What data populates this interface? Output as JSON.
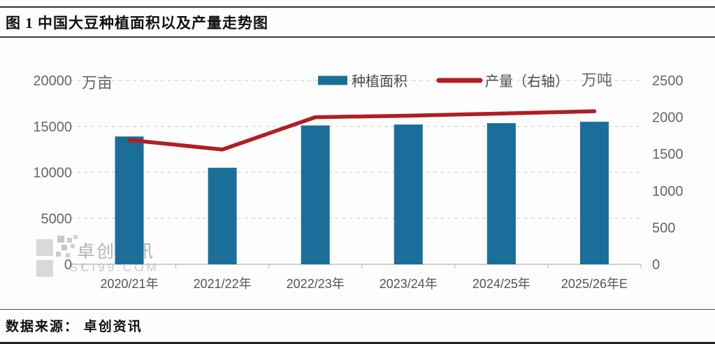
{
  "header": {
    "title": "图 1  中国大豆种植面积以及产量走势图"
  },
  "footer": {
    "source": "数据来源： 卓创资讯"
  },
  "watermark": {
    "name": "卓创资讯",
    "site": "SCI99.COM"
  },
  "chart_data": {
    "type": "combo-bar-line",
    "title": "图 1 中国大豆种植面积以及产量走势图",
    "categories": [
      "2020/21年",
      "2021/22年",
      "2022/23年",
      "2023/24年",
      "2024/25年",
      "2025/26年E"
    ],
    "series": [
      {
        "name": "种植面积",
        "type": "bar",
        "axis": "left",
        "color": "#1a6e99",
        "values": [
          13900,
          10500,
          15100,
          15200,
          15350,
          15500
        ]
      },
      {
        "name": "产量（右轴）",
        "type": "line",
        "axis": "right",
        "color": "#b01e23",
        "values": [
          1690,
          1560,
          2000,
          2020,
          2050,
          2080
        ]
      }
    ],
    "left_axis": {
      "unit": "万亩",
      "ticks": [
        0,
        5000,
        10000,
        15000,
        20000
      ],
      "max": 20000
    },
    "right_axis": {
      "unit": "万吨",
      "ticks": [
        0,
        500,
        1000,
        1500,
        2000,
        2500
      ],
      "max": 2500
    },
    "legend_position": "top",
    "grid": "horizontal dashed",
    "colors": {
      "grid": "#d4d4d4",
      "axis": "#c2c2c2",
      "tick_label": "#666666",
      "legend_text": "#4a4a4a",
      "watermark_text": "#b4b4b4",
      "watermark_site": "#c8c8c8"
    }
  }
}
